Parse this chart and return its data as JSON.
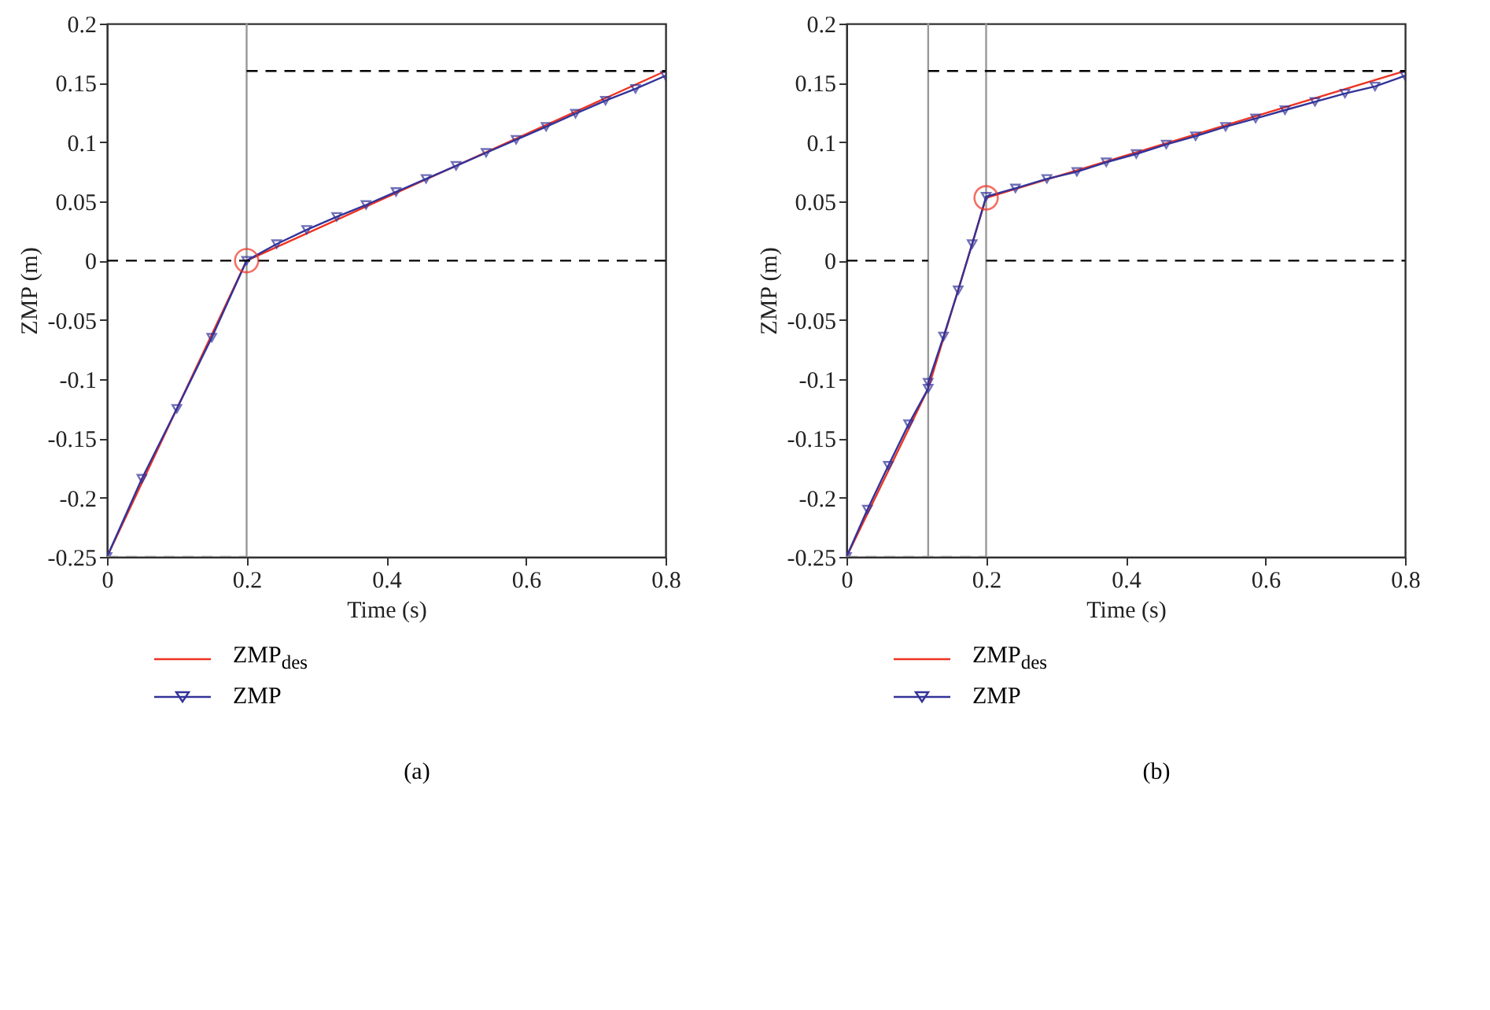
{
  "chart_data": [
    {
      "type": "line",
      "xlabel": "Time (s)",
      "ylabel": "ZMP (m)",
      "xlim": [
        0,
        0.8
      ],
      "ylim": [
        -0.25,
        0.2
      ],
      "xticks": [
        0,
        0.2,
        0.4,
        0.6,
        0.8
      ],
      "yticks": [
        -0.25,
        -0.2,
        -0.15,
        -0.1,
        -0.05,
        0,
        0.05,
        0.1,
        0.15,
        0.2
      ],
      "legend": "bottom",
      "annotations": [
        "(a)"
      ],
      "ref_lines": [
        {
          "axis": "x",
          "value": 0.2,
          "color": "#999999"
        }
      ],
      "series": [
        {
          "name": "ZMP$_{des}$",
          "color": "#ee3322",
          "marker": "none",
          "line_style": "solid",
          "x": [
            0,
            0.2,
            0.8
          ],
          "values": [
            -0.25,
            0,
            0.16
          ]
        },
        {
          "name": "ZMP",
          "color": "#333399",
          "marker": "triangle",
          "line_style": "solid",
          "x": [
            0,
            0.05,
            0.1,
            0.15,
            0.2,
            0.243,
            0.286,
            0.329,
            0.371,
            0.414,
            0.457,
            0.5,
            0.543,
            0.586,
            0.629,
            0.671,
            0.714,
            0.757,
            0.8
          ],
          "values": [
            -0.25,
            -0.184,
            -0.125,
            -0.065,
            0,
            0.014,
            0.026,
            0.037,
            0.047,
            0.058,
            0.069,
            0.08,
            0.091,
            0.102,
            0.113,
            0.124,
            0.135,
            0.145,
            0.156
          ]
        },
        {
          "color": "#000000",
          "marker": "none",
          "line_style": "dashed",
          "x": [
            0.2,
            0.8
          ],
          "values": [
            0.16,
            0.16
          ]
        },
        {
          "color": "#000000",
          "marker": "none",
          "line_style": "dashed",
          "x": [
            0,
            0.8
          ],
          "values": [
            0,
            0
          ]
        },
        {
          "color": "#888888",
          "marker": "none",
          "line_style": "dashed",
          "x": [
            0,
            0.2
          ],
          "values": [
            -0.25,
            -0.25
          ]
        },
        {
          "type": "scatter",
          "color": "#ee3322",
          "marker": "circle",
          "x": [
            0.2
          ],
          "values": [
            0
          ]
        }
      ]
    },
    {
      "type": "line",
      "xlabel": "Time (s)",
      "ylabel": "ZMP (m)",
      "xlim": [
        0,
        0.8
      ],
      "ylim": [
        -0.25,
        0.2
      ],
      "xticks": [
        0,
        0.2,
        0.4,
        0.6,
        0.8
      ],
      "yticks": [
        -0.25,
        -0.2,
        -0.15,
        -0.1,
        -0.05,
        0,
        0.05,
        0.1,
        0.15,
        0.2
      ],
      "legend": "bottom",
      "annotations": [
        "(b)"
      ],
      "ref_lines": [
        {
          "axis": "x",
          "value": 0.117,
          "color": "#999999"
        },
        {
          "axis": "x",
          "value": 0.2,
          "color": "#999999"
        }
      ],
      "series": [
        {
          "name": "ZMP$_{des}$",
          "color": "#ee3322",
          "marker": "none",
          "line_style": "solid",
          "x": [
            0,
            0.117,
            0.2,
            0.8
          ],
          "values": [
            -0.25,
            -0.108,
            0.053,
            0.16
          ]
        },
        {
          "name": "ZMP",
          "color": "#333399",
          "marker": "triangle",
          "line_style": "solid",
          "x": [
            0,
            0.03,
            0.06,
            0.089,
            0.117,
            0.117,
            0.139,
            0.16,
            0.18,
            0.2,
            0.242,
            0.287,
            0.33,
            0.372,
            0.415,
            0.458,
            0.5,
            0.543,
            0.586,
            0.628,
            0.671,
            0.714,
            0.757,
            0.8
          ],
          "values": [
            -0.25,
            -0.21,
            -0.173,
            -0.138,
            -0.108,
            -0.103,
            -0.064,
            -0.025,
            0.014,
            0.054,
            0.061,
            0.069,
            0.075,
            0.083,
            0.09,
            0.098,
            0.105,
            0.113,
            0.12,
            0.127,
            0.134,
            0.141,
            0.147,
            0.156
          ]
        },
        {
          "color": "#000000",
          "marker": "none",
          "line_style": "dashed",
          "x": [
            0.117,
            0.8
          ],
          "values": [
            0.16,
            0.16
          ]
        },
        {
          "color": "#000000",
          "marker": "none",
          "line_style": "dashed",
          "x": [
            0,
            0.117
          ],
          "values": [
            0,
            0
          ]
        },
        {
          "color": "#000000",
          "marker": "none",
          "line_style": "dashed",
          "x": [
            0.2,
            0.8
          ],
          "values": [
            0,
            0
          ]
        },
        {
          "color": "#888888",
          "marker": "none",
          "line_style": "dashed",
          "x": [
            0,
            0.2
          ],
          "values": [
            -0.25,
            -0.25
          ]
        },
        {
          "type": "scatter",
          "color": "#ee3322",
          "marker": "circle",
          "x": [
            0.2
          ],
          "values": [
            0.053
          ]
        }
      ]
    }
  ]
}
